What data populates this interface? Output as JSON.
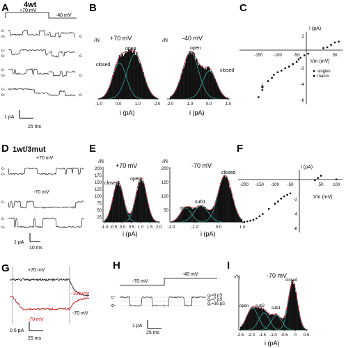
{
  "panels": {
    "A": {
      "letter": "A",
      "title": "4wt",
      "v_left": "+70 mV",
      "v_right": "-40 mV",
      "scale_current": "1 pA",
      "scale_time": "25 ms",
      "c_label": "c-",
      "o_label": "o-",
      "o_right": "o"
    },
    "B": {
      "letter": "B",
      "ylabel": "√N",
      "xlabel": "i (pA)",
      "left": {
        "title": "+70 mV",
        "closed": "closed",
        "open": "open",
        "ticks": [
          "-1.0",
          "0.0",
          "1.0",
          "2.0"
        ]
      },
      "right": {
        "title": "-40 mV",
        "open": "open",
        "closed": "closed",
        "ticks": [
          "-2.0",
          "-1.0",
          "0.0",
          "1.0"
        ]
      }
    },
    "C": {
      "letter": "C",
      "ylabel": "I (pA)",
      "xlabel": "Vm (mV)",
      "xticks": [
        "-150",
        "-100",
        "-50",
        "50"
      ],
      "yticks": [
        "2",
        "-2",
        "-4",
        "-6"
      ],
      "legend": [
        "singles",
        "macro"
      ]
    },
    "D": {
      "letter": "D",
      "title": "1wt/3mut",
      "v1": "+70 mV",
      "v2": "-70 mV",
      "scale_current": "1 pA",
      "scale_time": "10 ms",
      "c_label": "c-",
      "o_label": "o-"
    },
    "E": {
      "letter": "E",
      "ylabel": "√N",
      "xlabel": "i (pA)",
      "left": {
        "title": "+70 mV",
        "closed": "closed",
        "open": "open",
        "yticks": [
          "200",
          "175",
          "150",
          "125",
          "100",
          "75",
          "50",
          "25"
        ],
        "ticks": [
          "-1.0",
          "-0.5",
          "0.0",
          "0.5",
          "1.0",
          "1.5",
          "2.0"
        ]
      },
      "right": {
        "title": "-70 mV",
        "closed": "closed",
        "open": "open",
        "sub": "sub1",
        "yticks": [
          "200",
          "150",
          "100",
          "50"
        ],
        "ticks": [
          "-2.0",
          "-1.0",
          "0.0",
          "1.0"
        ]
      }
    },
    "F": {
      "letter": "F",
      "ylabel": "I (pA)",
      "xlabel": "Vm (mV)",
      "xticks": [
        "-200",
        "-150",
        "-100",
        "-50",
        "50",
        "100"
      ],
      "yticks": [
        "-2",
        "-4",
        "-6"
      ]
    },
    "G": {
      "letter": "G",
      "plus": "+70 mV",
      "minus_red": "-70 mV",
      "minus_black": "-70 mV",
      "red_hundred": "-100 mV",
      "scale_current": "0.5 pA",
      "scale_time": "25 ms",
      "red_color": "#cc1111"
    },
    "H": {
      "letter": "H",
      "v1": "-70 mV",
      "v2": "-40 mV",
      "scale_current": "1 pA",
      "scale_time": "25 ms",
      "c_label": "c-",
      "o_label": "o-",
      "g_labels": [
        "g₁=8 pS",
        "g₂=7 pS",
        "g₃=36 pS"
      ]
    },
    "I": {
      "letter": "I",
      "title": "-70 mV",
      "ylabel": "√N",
      "xlabel": "i (pA)",
      "labels": [
        "open",
        "sub2",
        "sub1",
        "closed"
      ],
      "ticks": [
        "-2.5",
        "-2.0",
        "-1.5",
        "-1.0",
        "-0.5",
        "0",
        "0.5"
      ]
    }
  },
  "chart_data": [
    {
      "type": "scatter",
      "panel": "C",
      "title": "",
      "xlabel": "Vm (mV)",
      "ylabel": "I (pA)",
      "xlim": [
        -200,
        70
      ],
      "ylim": [
        -6.5,
        2.5
      ],
      "series": [
        {
          "name": "singles",
          "x": [
            -150,
            -140,
            -125,
            -115,
            -110,
            -100,
            -90,
            -80,
            -70,
            -60,
            -50,
            -45,
            -40,
            -30,
            -20,
            20,
            30,
            40,
            50,
            60
          ],
          "y": [
            -5.6,
            -4.7,
            -3.6,
            -3.2,
            -2.8,
            -2.5,
            -2.3,
            -2.0,
            -1.8,
            -1.5,
            -1.2,
            -0.9,
            -0.7,
            -0.4,
            -0.2,
            0.5,
            0.6,
            0.9,
            1.2,
            1.3
          ]
        },
        {
          "name": "macro",
          "x": [
            -140
          ],
          "y": [
            -4.3
          ]
        }
      ]
    },
    {
      "type": "scatter",
      "panel": "F",
      "title": "",
      "xlabel": "Vm (mV)",
      "ylabel": "I (pA)",
      "xlim": [
        -220,
        120
      ],
      "ylim": [
        -6.5,
        2
      ],
      "series": [
        {
          "name": "",
          "x": [
            -200,
            -190,
            -180,
            -170,
            -160,
            -150,
            -140,
            -120,
            -100,
            -90,
            -80,
            -70,
            -60,
            -50,
            30,
            40,
            50,
            100
          ],
          "y": [
            -5.1,
            -5.0,
            -4.9,
            -4.8,
            -4.6,
            -4.3,
            -4.0,
            -3.3,
            -2.6,
            -2.3,
            -1.9,
            -1.6,
            -1.4,
            -1.2,
            0.6,
            0.9,
            1.2,
            0.7
          ]
        }
      ]
    }
  ]
}
